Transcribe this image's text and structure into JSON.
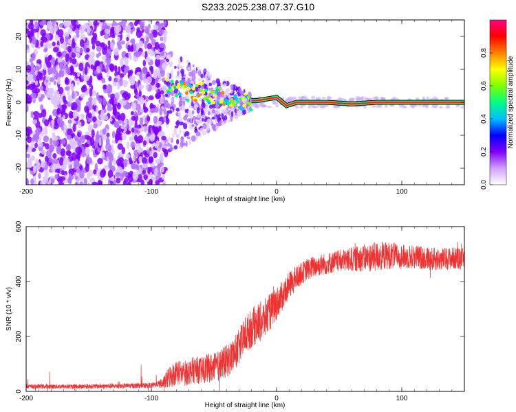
{
  "title": "S233.2025.238.07.37.G10",
  "chart_data": [
    {
      "type": "heatmap",
      "xlabel": "Height of straight line (km)",
      "ylabel": "Frequency (Hz)",
      "xlim": [
        -200,
        150
      ],
      "ylim": [
        -25,
        25
      ],
      "xticks": [
        -200,
        -100,
        0,
        100
      ],
      "xtick_labels": [
        "-200",
        "-100",
        "0",
        "100"
      ],
      "yticks": [
        -20,
        -10,
        0,
        10,
        20
      ],
      "ytick_labels": [
        "-20",
        "-10",
        "0",
        "10",
        "20"
      ],
      "colorbar": {
        "label": "Normalized spectral amplitude",
        "range": [
          0,
          1
        ],
        "ticks": [
          0.0,
          0.2,
          0.4,
          0.6,
          0.8
        ],
        "tick_labels": [
          "0.0",
          "0.2",
          "0.4",
          "0.6",
          "0.8"
        ],
        "colors": [
          "#ffffff",
          "#d0a0ff",
          "#8000ff",
          "#0000ff",
          "#00c0ff",
          "#00ff80",
          "#80ff00",
          "#ffff00",
          "#ff8000",
          "#ff0000",
          "#ff0080"
        ]
      },
      "noise_region_x": [
        -200,
        -88
      ],
      "transition_region_x": [
        -88,
        -20
      ],
      "signal_track": [
        {
          "x": -88,
          "f": 4.5
        },
        {
          "x": -80,
          "f": 4
        },
        {
          "x": -72,
          "f": 3
        },
        {
          "x": -64,
          "f": 3.5
        },
        {
          "x": -56,
          "f": 3
        },
        {
          "x": -48,
          "f": 2
        },
        {
          "x": -40,
          "f": 1.5
        },
        {
          "x": -32,
          "f": 0
        },
        {
          "x": -24,
          "f": 0.5
        },
        {
          "x": -16,
          "f": 0.5
        },
        {
          "x": -8,
          "f": 1
        },
        {
          "x": 0,
          "f": 1.5
        },
        {
          "x": 8,
          "f": -1
        },
        {
          "x": 16,
          "f": 0
        },
        {
          "x": 40,
          "f": 0
        },
        {
          "x": 60,
          "f": -0.5
        },
        {
          "x": 80,
          "f": 0
        },
        {
          "x": 100,
          "f": 0
        },
        {
          "x": 150,
          "f": 0
        }
      ]
    },
    {
      "type": "line",
      "xlabel": "Height of straight line (km)",
      "ylabel": "SNR (10 * v/v)",
      "xlim": [
        -200,
        150
      ],
      "ylim": [
        0,
        600
      ],
      "xticks": [
        -200,
        -100,
        0,
        100
      ],
      "xtick_labels": [
        "-200",
        "-100",
        "0",
        "100"
      ],
      "yticks": [
        0,
        200,
        400,
        600
      ],
      "ytick_labels": [
        "0",
        "200",
        "400",
        "600"
      ],
      "color": "#ee3333",
      "series": [
        {
          "name": "SNR",
          "x": [
            -200,
            -180,
            -160,
            -140,
            -120,
            -100,
            -90,
            -85,
            -80,
            -75,
            -70,
            -65,
            -60,
            -55,
            -50,
            -45,
            -40,
            -35,
            -30,
            -25,
            -20,
            -15,
            -10,
            -5,
            0,
            5,
            10,
            15,
            20,
            25,
            30,
            40,
            50,
            60,
            70,
            80,
            90,
            100,
            110,
            120,
            130,
            140,
            150
          ],
          "y": [
            18,
            18,
            18,
            19,
            20,
            22,
            30,
            55,
            70,
            65,
            70,
            80,
            75,
            85,
            85,
            95,
            110,
            130,
            160,
            205,
            230,
            250,
            260,
            290,
            320,
            350,
            385,
            410,
            430,
            445,
            455,
            465,
            475,
            480,
            485,
            490,
            495,
            490,
            490,
            485,
            480,
            485,
            480
          ]
        }
      ],
      "noise_amplitude": [
        {
          "x": -200,
          "a": 8
        },
        {
          "x": -95,
          "a": 10
        },
        {
          "x": -90,
          "a": 25
        },
        {
          "x": -85,
          "a": 45
        },
        {
          "x": -60,
          "a": 50
        },
        {
          "x": -40,
          "a": 60
        },
        {
          "x": -25,
          "a": 70
        },
        {
          "x": -10,
          "a": 75
        },
        {
          "x": 0,
          "a": 60
        },
        {
          "x": 20,
          "a": 40
        },
        {
          "x": 50,
          "a": 40
        },
        {
          "x": 80,
          "a": 55
        },
        {
          "x": 100,
          "a": 45
        },
        {
          "x": 150,
          "a": 40
        }
      ]
    }
  ]
}
